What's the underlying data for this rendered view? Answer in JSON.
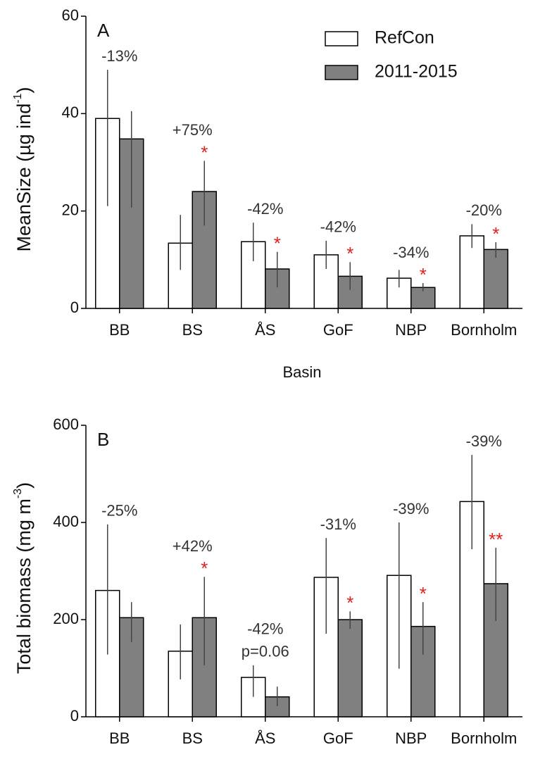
{
  "chart_data": [
    {
      "type": "bar",
      "panel_label": "A",
      "y_label": "MeanSize (µg ind",
      "y_label_sup": "-1",
      "y_label_end": ")",
      "x_label": "Basin",
      "categories": [
        "BB",
        "BS",
        "ÅS",
        "GoF",
        "NBP",
        "Bornholm"
      ],
      "series": [
        {
          "name": "RefCon",
          "color": "#ffffff",
          "values": [
            39,
            13.4,
            13.7,
            11,
            6.2,
            14.9
          ],
          "ci_low": [
            21,
            7.9,
            9.7,
            8.1,
            4.3,
            12.4
          ],
          "ci_high": [
            49,
            19.2,
            17.6,
            13.9,
            7.9,
            17.3
          ]
        },
        {
          "name": "2011-2015",
          "color": "#808080",
          "values": [
            34.8,
            24,
            8.1,
            6.6,
            4.3,
            12.1
          ],
          "ci_low": [
            20.7,
            17,
            4.3,
            3.8,
            3.5,
            10.4
          ],
          "ci_high": [
            40.5,
            30.3,
            11.6,
            9.5,
            5.2,
            13.6
          ]
        }
      ],
      "changes": [
        "-13%",
        "+75%",
        "-42%",
        "-42%",
        "-34%",
        "-20%"
      ],
      "significance": [
        null,
        "*",
        "*",
        "*",
        "*",
        "*"
      ],
      "ylim": [
        0,
        60
      ],
      "yticks": [
        0,
        20,
        40,
        60
      ],
      "legend": "upper right"
    },
    {
      "type": "bar",
      "panel_label": "B",
      "y_label": "Total biomass (mg m",
      "y_label_sup": "-3",
      "y_label_end": ")",
      "x_label": "Basin",
      "categories": [
        "BB",
        "BS",
        "ÅS",
        "GoF",
        "NBP",
        "Bornholm"
      ],
      "series": [
        {
          "color": "#ffffff",
          "values": [
            260,
            135,
            81,
            287,
            291,
            443
          ],
          "ci_low": [
            128,
            77,
            41,
            171,
            99,
            345
          ],
          "ci_high": [
            396,
            190,
            106,
            368,
            400,
            539
          ]
        },
        {
          "color": "#808080",
          "values": [
            204,
            204,
            41,
            200,
            186,
            274
          ],
          "ci_low": [
            154,
            106,
            22,
            181,
            128,
            197
          ],
          "ci_high": [
            236,
            288,
            62,
            217,
            236,
            348
          ]
        }
      ],
      "changes": [
        "-25%",
        "+42%",
        "-42%",
        "-31%",
        "-39%",
        "-39%"
      ],
      "significance": [
        null,
        "*",
        null,
        "*",
        "*",
        "**"
      ],
      "notes": [
        null,
        null,
        "p=0.06",
        null,
        null,
        null
      ],
      "ylim": [
        0,
        600
      ],
      "yticks": [
        0,
        200,
        400,
        600
      ]
    }
  ]
}
